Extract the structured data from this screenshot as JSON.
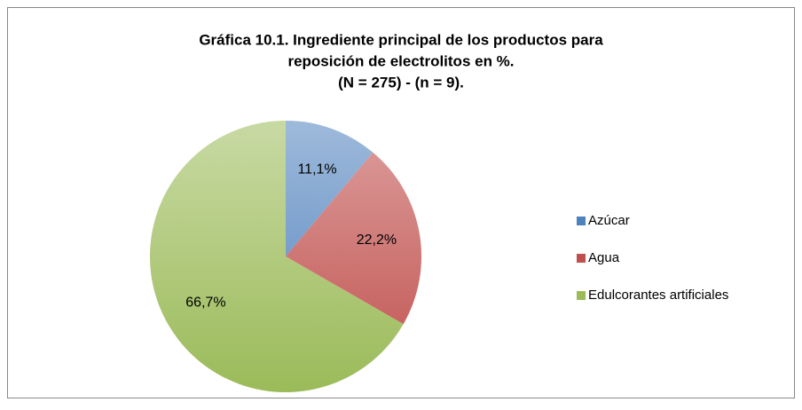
{
  "chart_data": {
    "type": "pie",
    "title": [
      "Gráfica 10.1. Ingrediente principal de los productos para",
      "reposición de electrolitos en %.",
      "(N = 275) - (n = 9)."
    ],
    "categories": [
      "Azúcar",
      "Agua",
      "Edulcorantes artificiales"
    ],
    "values": [
      11.1,
      22.2,
      66.7
    ],
    "value_labels": [
      "11,1%",
      "22,2%",
      "66,7%"
    ],
    "colors": [
      "#4f81bd",
      "#c0504d",
      "#9bbb59"
    ],
    "legend": "right"
  }
}
